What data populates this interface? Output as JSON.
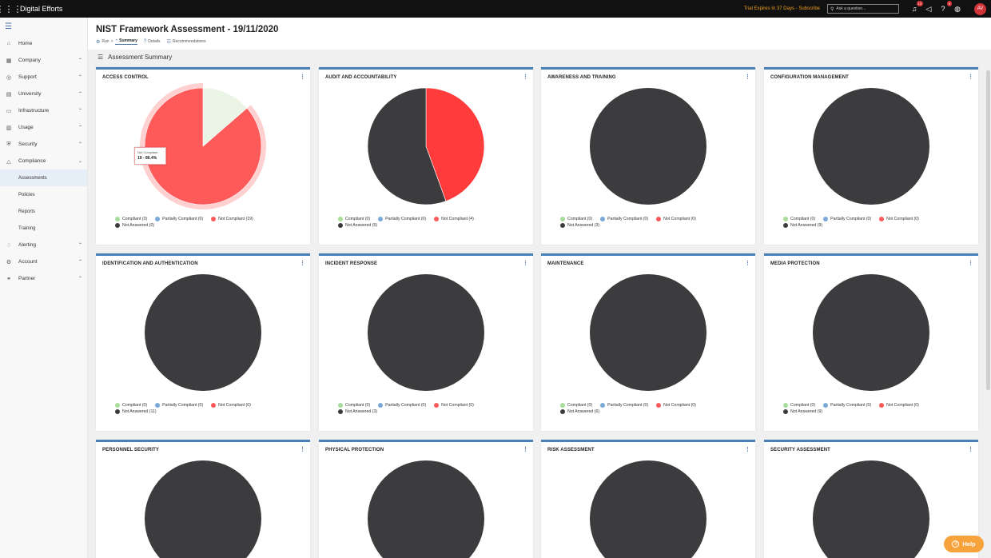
{
  "topbar": {
    "app_title": "Digital Efforts",
    "trial_text": "Trial Expires In 37 Days - Subscribe",
    "search_placeholder": "Ask a question...",
    "notification_count": "13",
    "help_count": "9",
    "avatar_initials": "AV"
  },
  "sidebar": {
    "items": [
      {
        "label": "Home",
        "icon": "home-icon",
        "glyph": "⌂",
        "chevron": ""
      },
      {
        "label": "Company",
        "icon": "company-icon",
        "glyph": "▦",
        "chevron": "⌃"
      },
      {
        "label": "Support",
        "icon": "support-icon",
        "glyph": "◎",
        "chevron": "⌃"
      },
      {
        "label": "University",
        "icon": "university-icon",
        "glyph": "▤",
        "chevron": "⌃"
      },
      {
        "label": "Infrastructure",
        "icon": "infrastructure-icon",
        "glyph": "▭",
        "chevron": "⌃"
      },
      {
        "label": "Usage",
        "icon": "usage-icon",
        "glyph": "▥",
        "chevron": "⌃"
      },
      {
        "label": "Security",
        "icon": "security-icon",
        "glyph": "⛨",
        "chevron": "⌃"
      },
      {
        "label": "Compliance",
        "icon": "compliance-icon",
        "glyph": "△",
        "chevron": "⌄"
      }
    ],
    "sub_items": [
      "Assessments",
      "Policies",
      "Reports",
      "Training"
    ],
    "items_after": [
      {
        "label": "Alerting",
        "icon": "alerting-icon",
        "glyph": "♢",
        "chevron": "⌃"
      },
      {
        "label": "Account",
        "icon": "account-icon",
        "glyph": "⚙",
        "chevron": "⌃"
      },
      {
        "label": "Partner",
        "icon": "partner-icon",
        "glyph": "⚭",
        "chevron": "⌃"
      }
    ]
  },
  "header": {
    "title": "NIST Framework Assessment - 19/11/2020",
    "breadcrumb": {
      "run": "Run",
      "sep": ">",
      "summary": "Summary",
      "details": "Details",
      "recommendations": "Recommendations"
    }
  },
  "section": {
    "title": "Assessment Summary"
  },
  "legend_labels": {
    "compliant": "Compliant",
    "partial": "Partially Compliant",
    "not_compliant": "Not Compliant",
    "not_answered": "Not Answered"
  },
  "colors": {
    "compliant": "#eaf5e6",
    "compliant_dot": "#a8dc9a",
    "partial": "#7aa9d8",
    "not_compliant": "#ff5a5a",
    "not_compliant_audit": "#ff3b3b",
    "not_answered": "#3c3c3e",
    "accent": "#4a80b8"
  },
  "cards": [
    {
      "title": "ACCESS CONTROL",
      "compliant": 3,
      "partial": 0,
      "not_compliant": 19,
      "not_answered": 0
    },
    {
      "title": "AUDIT AND ACCOUNTABILITY",
      "compliant": 0,
      "partial": 0,
      "not_compliant": 4,
      "not_answered": 5
    },
    {
      "title": "AWARENESS AND TRAINING",
      "compliant": 0,
      "partial": 0,
      "not_compliant": 0,
      "not_answered": 3
    },
    {
      "title": "CONFIGURATION MANAGEMENT",
      "compliant": 0,
      "partial": 0,
      "not_compliant": 0,
      "not_answered": 9
    },
    {
      "title": "IDENTIFICATION AND AUTHENTICATION",
      "compliant": 0,
      "partial": 0,
      "not_compliant": 0,
      "not_answered": 11
    },
    {
      "title": "INCIDENT RESPONSE",
      "compliant": 0,
      "partial": 0,
      "not_compliant": 0,
      "not_answered": 3
    },
    {
      "title": "MAINTENANCE",
      "compliant": 0,
      "partial": 0,
      "not_compliant": 0,
      "not_answered": 6
    },
    {
      "title": "MEDIA PROTECTION",
      "compliant": 0,
      "partial": 0,
      "not_compliant": 0,
      "not_answered": 9
    },
    {
      "title": "PERSONNEL SECURITY"
    },
    {
      "title": "PHYSICAL PROTECTION"
    },
    {
      "title": "RISK ASSESSMENT"
    },
    {
      "title": "SECURITY ASSESSMENT"
    }
  ],
  "tooltip": {
    "label": "Not Compliant",
    "value": "19 - 86.4%"
  },
  "help_button": {
    "label": "Help"
  }
}
